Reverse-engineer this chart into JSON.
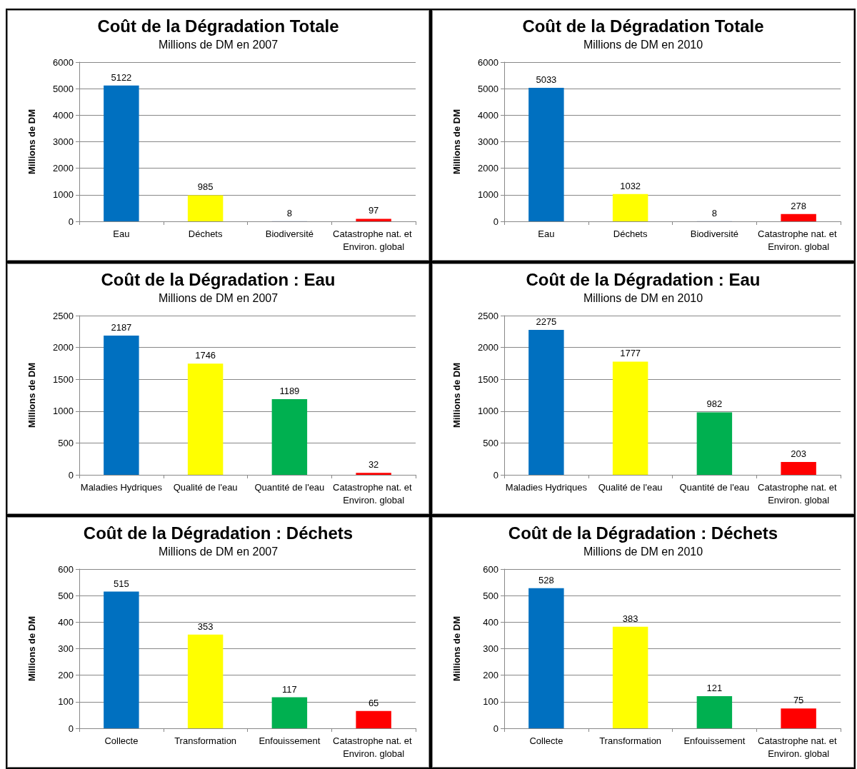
{
  "chart_data": [
    {
      "type": "bar",
      "title": "Coût de la Dégradation Totale",
      "subtitle": "Millions de DM en 2007",
      "ylabel": "Millions de DM",
      "categories": [
        "Eau",
        "Déchets",
        "Biodiversité",
        "Catastrophe nat. et Environ. global"
      ],
      "values": [
        5122,
        985,
        8,
        97
      ],
      "colors": [
        "#0070c0",
        "#ffff00",
        "#8eaadb",
        "#ff0000"
      ],
      "ylim": [
        0,
        6000
      ],
      "yticks": [
        0,
        1000,
        2000,
        3000,
        4000,
        5000,
        6000
      ],
      "grid": "y",
      "data_labels": true
    },
    {
      "type": "bar",
      "title": "Coût de la Dégradation Totale",
      "subtitle": "Millions de DM en 2010",
      "ylabel": "Millions de DM",
      "categories": [
        "Eau",
        "Déchets",
        "Biodiversité",
        "Catastrophe nat. et Environ. global"
      ],
      "values": [
        5033,
        1032,
        8,
        278
      ],
      "colors": [
        "#0070c0",
        "#ffff00",
        "#8eaadb",
        "#ff0000"
      ],
      "ylim": [
        0,
        6000
      ],
      "yticks": [
        0,
        1000,
        2000,
        3000,
        4000,
        5000,
        6000
      ],
      "grid": "y",
      "data_labels": true
    },
    {
      "type": "bar",
      "title": "Coût de la Dégradation : Eau",
      "subtitle": "Millions de DM en 2007",
      "ylabel": "Millions de DM",
      "categories": [
        "Maladies Hydriques",
        "Qualité de l'eau",
        "Quantité de l'eau",
        "Catastrophe nat. et Environ. global"
      ],
      "values": [
        2187,
        1746,
        1189,
        32
      ],
      "colors": [
        "#0070c0",
        "#ffff00",
        "#00b050",
        "#ff0000"
      ],
      "ylim": [
        0,
        2500
      ],
      "yticks": [
        0,
        500,
        1000,
        1500,
        2000,
        2500
      ],
      "grid": "y",
      "data_labels": true
    },
    {
      "type": "bar",
      "title": "Coût de la Dégradation : Eau",
      "subtitle": "Millions de DM en 2010",
      "ylabel": "Millions de DM",
      "categories": [
        "Maladies Hydriques",
        "Qualité de l'eau",
        "Quantité de l'eau",
        "Catastrophe nat. et Environ. global"
      ],
      "values": [
        2275,
        1777,
        982,
        203
      ],
      "colors": [
        "#0070c0",
        "#ffff00",
        "#00b050",
        "#ff0000"
      ],
      "ylim": [
        0,
        2500
      ],
      "yticks": [
        0,
        500,
        1000,
        1500,
        2000,
        2500
      ],
      "grid": "y",
      "data_labels": true
    },
    {
      "type": "bar",
      "title": "Coût de la Dégradation : Déchets",
      "subtitle": "Millions de DM en 2007",
      "ylabel": "Millions de DM",
      "categories": [
        "Collecte",
        "Transformation",
        "Enfouissement",
        "Catastrophe nat. et Environ. global"
      ],
      "values": [
        515,
        353,
        117,
        65
      ],
      "colors": [
        "#0070c0",
        "#ffff00",
        "#00b050",
        "#ff0000"
      ],
      "ylim": [
        0,
        600
      ],
      "yticks": [
        0,
        100,
        200,
        300,
        400,
        500,
        600
      ],
      "grid": "y",
      "data_labels": true
    },
    {
      "type": "bar",
      "title": "Coût de la Dégradation : Déchets",
      "subtitle": "Millions de DM en 2010",
      "ylabel": "Millions de DM",
      "categories": [
        "Collecte",
        "Transformation",
        "Enfouissement",
        "Catastrophe nat. et Environ. global"
      ],
      "values": [
        528,
        383,
        121,
        75
      ],
      "colors": [
        "#0070c0",
        "#ffff00",
        "#00b050",
        "#ff0000"
      ],
      "ylim": [
        0,
        600
      ],
      "yticks": [
        0,
        100,
        200,
        300,
        400,
        500,
        600
      ],
      "grid": "y",
      "data_labels": true
    }
  ]
}
